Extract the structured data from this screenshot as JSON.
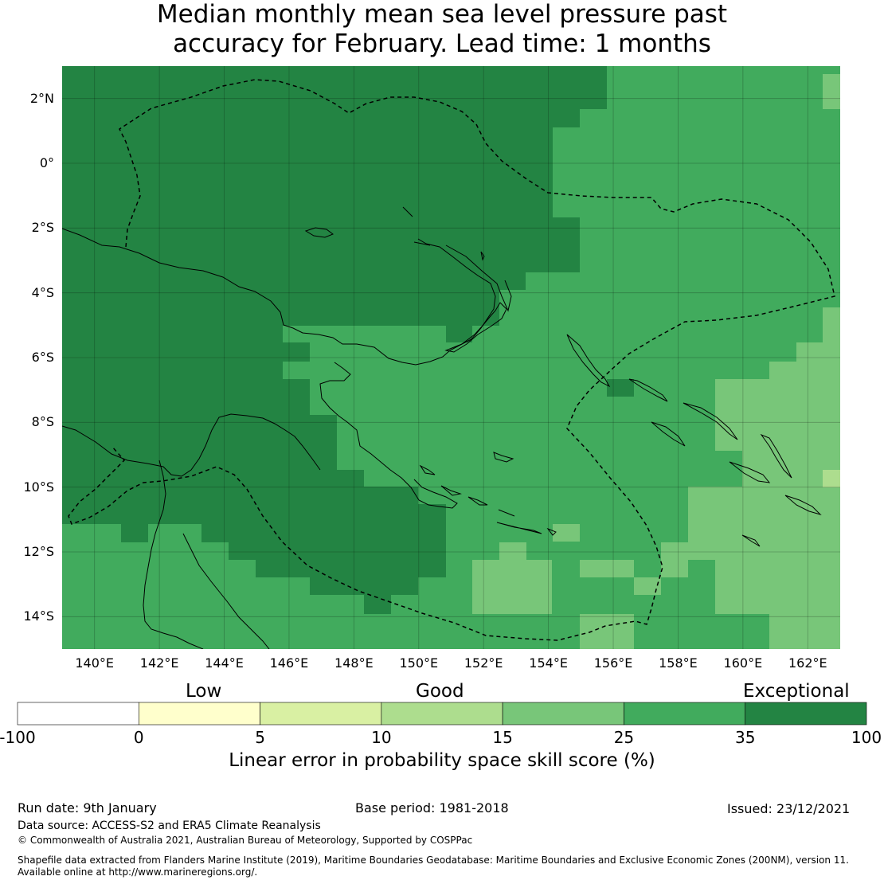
{
  "title": {
    "line1": "Median monthly mean sea level pressure past",
    "line2": "accuracy for February. Lead time: 1 months"
  },
  "map": {
    "lon_range": [
      139,
      163
    ],
    "lat_range": [
      -15,
      3
    ],
    "lon_ticks": [
      {
        "value": 140,
        "label": "140°E"
      },
      {
        "value": 142,
        "label": "142°E"
      },
      {
        "value": 144,
        "label": "144°E"
      },
      {
        "value": 146,
        "label": "146°E"
      },
      {
        "value": 148,
        "label": "148°E"
      },
      {
        "value": 150,
        "label": "150°E"
      },
      {
        "value": 152,
        "label": "152°E"
      },
      {
        "value": 154,
        "label": "154°E"
      },
      {
        "value": 156,
        "label": "156°E"
      },
      {
        "value": 158,
        "label": "158°E"
      },
      {
        "value": 160,
        "label": "160°E"
      },
      {
        "value": 162,
        "label": "162°E"
      }
    ],
    "lat_ticks": [
      {
        "value": 2,
        "label": "2°N"
      },
      {
        "value": 0,
        "label": "0°"
      },
      {
        "value": -2,
        "label": "2°S"
      },
      {
        "value": -4,
        "label": "4°S"
      },
      {
        "value": -6,
        "label": "6°S"
      },
      {
        "value": -8,
        "label": "8°S"
      },
      {
        "value": -10,
        "label": "10°S"
      },
      {
        "value": -12,
        "label": "12°S"
      },
      {
        "value": -14,
        "label": "14°S"
      }
    ],
    "colors": {
      "exceptional": "#238443",
      "c25_35": "#41ab5d",
      "c15_25": "#78c679",
      "c10_15": "#addd8e",
      "c5_10": "#d9f0a3",
      "c0_5": "#ffffcc",
      "neg": "#ffffff",
      "coast": "#000000"
    }
  },
  "colorbar": {
    "categories": [
      {
        "label": "Low"
      },
      {
        "label": "Good"
      },
      {
        "label": "Exceptional"
      }
    ],
    "bins": [
      {
        "from": -100,
        "to": 0,
        "color": "#ffffff"
      },
      {
        "from": 0,
        "to": 5,
        "color": "#ffffcc"
      },
      {
        "from": 5,
        "to": 10,
        "color": "#d9f0a3"
      },
      {
        "from": 10,
        "to": 15,
        "color": "#addd8e"
      },
      {
        "from": 15,
        "to": 25,
        "color": "#78c679"
      },
      {
        "from": 25,
        "to": 35,
        "color": "#41ab5d"
      },
      {
        "from": 35,
        "to": 100,
        "color": "#238443"
      }
    ],
    "ticks": [
      "-100",
      "0",
      "5",
      "10",
      "15",
      "25",
      "35",
      "100"
    ],
    "title": "Linear error in probability space skill score (%)"
  },
  "footer": {
    "run_date": "Run date: 9th January",
    "base_period": "Base period: 1981-2018",
    "issued": "Issued: 23/12/2021",
    "data_source": "Data source: ACCESS-S2 and ERA5 Climate Reanalysis",
    "copyright": "© Commonwealth of Australia 2021, Australian Bureau of Meteorology, Supported by COSPPac",
    "shapefile_line1": "Shapefile data extracted from Flanders Marine Institute (2019), Maritime Boundaries Geodatabase: Maritime Boundaries and Exclusive Economic Zones (200NM), version 11.",
    "shapefile_line2": "Available online at http://www.marineregions.org/."
  }
}
